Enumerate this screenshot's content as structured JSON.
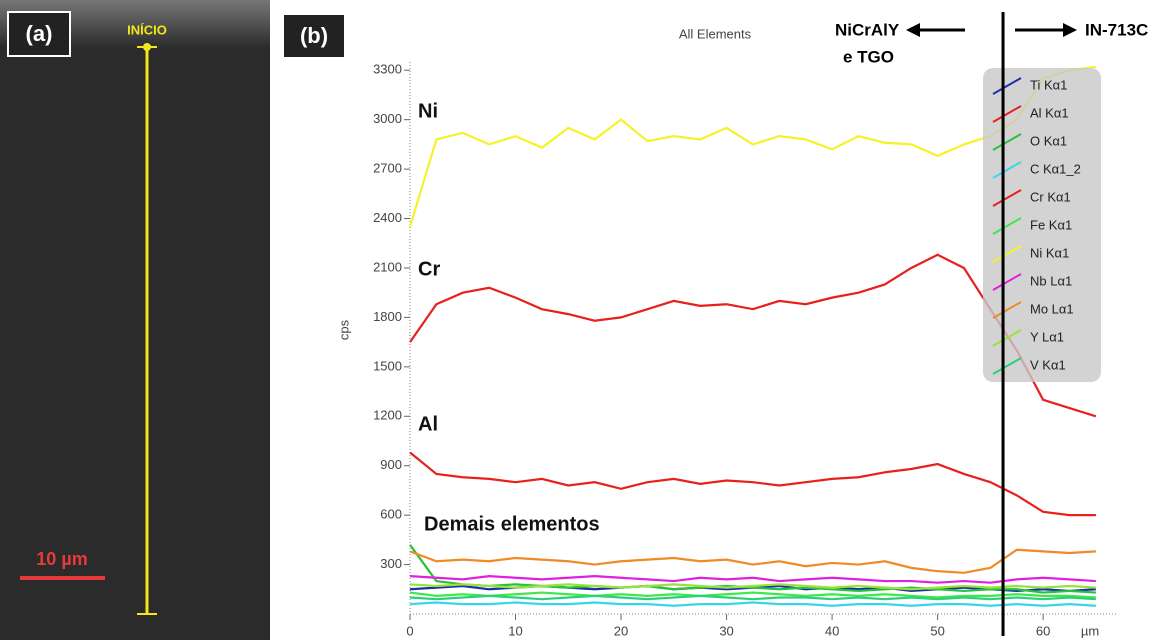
{
  "panel_a": {
    "label": "(a)",
    "start_label": "INÍCIO",
    "scale_label": "10 µm"
  },
  "chart_data": {
    "type": "line",
    "panel_label": "(b)",
    "title": "All Elements",
    "y_label": "cps",
    "x_label": "µm",
    "annotations": {
      "ni": "Ni",
      "cr": "Cr",
      "al": "Al",
      "others": "Demais elementos",
      "left_zone": "NiCrAlY",
      "left_zone_2": "e TGO",
      "right_zone": "IN-713C"
    },
    "divider_x": 56.2,
    "xlim": [
      0,
      67
    ],
    "ylim": [
      0,
      3350
    ],
    "xticks": [
      0,
      10,
      20,
      30,
      40,
      50,
      60
    ],
    "yticks": [
      300,
      600,
      900,
      1200,
      1500,
      1800,
      2100,
      2400,
      2700,
      3000,
      3300
    ],
    "x": [
      0,
      2.5,
      5,
      7.5,
      10,
      12.5,
      15,
      17.5,
      20,
      22.5,
      25,
      27.5,
      30,
      32.5,
      35,
      37.5,
      40,
      42.5,
      45,
      47.5,
      50,
      52.5,
      55,
      57.5,
      60,
      62.5,
      65
    ],
    "series": [
      {
        "name": "Ti Kα1",
        "color": "#1a2fb0",
        "values": [
          150,
          160,
          170,
          150,
          160,
          170,
          160,
          150,
          160,
          170,
          150,
          160,
          150,
          160,
          170,
          150,
          160,
          150,
          160,
          140,
          150,
          160,
          150,
          140,
          150,
          140,
          150
        ]
      },
      {
        "name": "Al Kα1",
        "color": "#e8201c",
        "values": [
          980,
          850,
          830,
          820,
          800,
          820,
          780,
          800,
          760,
          800,
          820,
          790,
          810,
          800,
          780,
          800,
          820,
          830,
          860,
          880,
          910,
          850,
          800,
          720,
          620,
          600,
          600
        ]
      },
      {
        "name": "O Kα1",
        "color": "#27c23a",
        "values": [
          420,
          200,
          180,
          170,
          180,
          170,
          160,
          170,
          160,
          170,
          150,
          160,
          170,
          160,
          150,
          160,
          150,
          140,
          150,
          160,
          150,
          140,
          150,
          150,
          130,
          140,
          130
        ]
      },
      {
        "name": "C Kα1_2",
        "color": "#3ad6e6",
        "values": [
          60,
          70,
          60,
          60,
          70,
          60,
          60,
          70,
          60,
          60,
          50,
          60,
          60,
          70,
          60,
          60,
          50,
          60,
          60,
          50,
          60,
          60,
          50,
          60,
          50,
          60,
          50
        ]
      },
      {
        "name": "Cr Kα1",
        "color": "#e8201c",
        "values": [
          1650,
          1880,
          1950,
          1980,
          1920,
          1850,
          1820,
          1780,
          1800,
          1850,
          1900,
          1870,
          1880,
          1850,
          1900,
          1880,
          1920,
          1950,
          2000,
          2100,
          2180,
          2100,
          1850,
          1600,
          1300,
          1250,
          1200
        ]
      },
      {
        "name": "Fe Kα1",
        "color": "#3de84a",
        "values": [
          130,
          110,
          120,
          110,
          120,
          130,
          120,
          110,
          120,
          110,
          120,
          110,
          120,
          130,
          120,
          110,
          120,
          110,
          120,
          110,
          100,
          110,
          110,
          120,
          110,
          110,
          100
        ]
      },
      {
        "name": "Ni Kα1",
        "color": "#f5f22a",
        "values": [
          2350,
          2880,
          2920,
          2850,
          2900,
          2830,
          2950,
          2880,
          3000,
          2870,
          2900,
          2880,
          2950,
          2850,
          2900,
          2880,
          2820,
          2900,
          2860,
          2850,
          2780,
          2850,
          2900,
          3000,
          3250,
          3300,
          3320
        ]
      },
      {
        "name": "Nb Lα1",
        "color": "#e020e0",
        "values": [
          230,
          220,
          210,
          230,
          220,
          210,
          220,
          230,
          220,
          210,
          200,
          220,
          210,
          220,
          200,
          210,
          220,
          210,
          200,
          200,
          190,
          200,
          190,
          210,
          220,
          210,
          200
        ]
      },
      {
        "name": "Mo Lα1",
        "color": "#f08a24",
        "values": [
          380,
          320,
          330,
          320,
          340,
          330,
          320,
          300,
          320,
          330,
          340,
          320,
          330,
          300,
          320,
          290,
          310,
          300,
          320,
          280,
          260,
          250,
          280,
          390,
          380,
          370,
          380
        ]
      },
      {
        "name": "Y Lα1",
        "color": "#9ae23a",
        "values": [
          180,
          170,
          180,
          170,
          160,
          170,
          180,
          170,
          160,
          170,
          180,
          170,
          160,
          170,
          180,
          170,
          160,
          170,
          160,
          150,
          160,
          170,
          160,
          170,
          160,
          170,
          160
        ]
      },
      {
        "name": "V Kα1",
        "color": "#2ad07a",
        "values": [
          100,
          90,
          100,
          110,
          100,
          90,
          100,
          110,
          100,
          90,
          100,
          110,
          100,
          90,
          100,
          100,
          90,
          100,
          90,
          100,
          90,
          100,
          90,
          100,
          90,
          100,
          90
        ]
      }
    ]
  }
}
